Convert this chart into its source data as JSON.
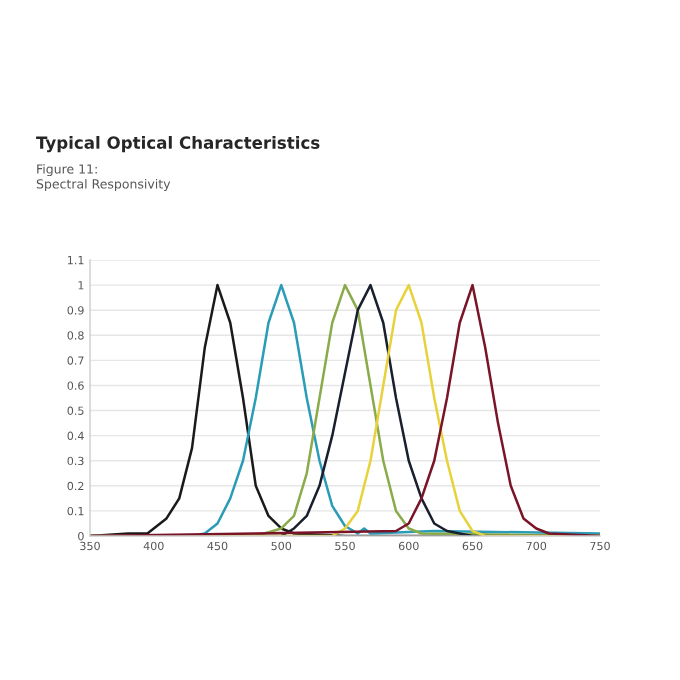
{
  "chart_data": {
    "type": "line",
    "title": "Typical Optical Characteristics",
    "subtitle": "Figure 11:\nSpectral Responsivity",
    "xlim": [
      350,
      750
    ],
    "xticks": [
      350,
      400,
      450,
      500,
      550,
      600,
      650,
      700,
      750
    ],
    "ylim": [
      0,
      1.1
    ],
    "yticks": [
      0,
      0.1,
      0.2,
      0.3,
      0.4,
      0.5,
      0.6,
      0.7,
      0.8,
      0.9,
      1,
      1.1
    ],
    "grid": "y",
    "marker": "none",
    "line_style": "solid",
    "series": [
      {
        "color": "#1a1a1a",
        "x": [
          350,
          380,
          395,
          400,
          410,
          420,
          430,
          440,
          450,
          460,
          470,
          480,
          490,
          500,
          510,
          550,
          750
        ],
        "values": [
          0,
          0.01,
          0.01,
          0.03,
          0.07,
          0.15,
          0.35,
          0.75,
          1.0,
          0.85,
          0.55,
          0.2,
          0.08,
          0.03,
          0.01,
          0,
          0
        ]
      },
      {
        "color": "#2a9cb8",
        "x": [
          350,
          430,
          440,
          450,
          460,
          470,
          480,
          490,
          500,
          510,
          520,
          530,
          540,
          550,
          560,
          565,
          570,
          620,
          750
        ],
        "values": [
          0,
          0,
          0.01,
          0.05,
          0.15,
          0.3,
          0.55,
          0.85,
          1.0,
          0.85,
          0.55,
          0.3,
          0.12,
          0.04,
          0.01,
          0.03,
          0.01,
          0.02,
          0.01
        ]
      },
      {
        "color": "#8aab4a",
        "x": [
          350,
          480,
          500,
          510,
          520,
          530,
          540,
          550,
          560,
          570,
          580,
          590,
          600,
          610,
          750
        ],
        "values": [
          0,
          0,
          0.03,
          0.08,
          0.25,
          0.55,
          0.85,
          1.0,
          0.9,
          0.6,
          0.3,
          0.1,
          0.03,
          0.01,
          0
        ]
      },
      {
        "color": "#1a1f2e",
        "x": [
          350,
          500,
          510,
          520,
          530,
          540,
          550,
          560,
          570,
          580,
          590,
          600,
          610,
          620,
          630,
          650,
          750
        ],
        "values": [
          0,
          0,
          0.03,
          0.08,
          0.2,
          0.4,
          0.65,
          0.9,
          1.0,
          0.85,
          0.55,
          0.3,
          0.15,
          0.05,
          0.02,
          0,
          0
        ]
      },
      {
        "color": "#e8d23c",
        "x": [
          350,
          540,
          550,
          560,
          570,
          580,
          590,
          600,
          610,
          620,
          630,
          640,
          650,
          660,
          750
        ],
        "values": [
          0,
          0,
          0.03,
          0.1,
          0.3,
          0.6,
          0.9,
          1.0,
          0.85,
          0.55,
          0.3,
          0.1,
          0.02,
          0,
          0
        ]
      },
      {
        "color": "#7a1428",
        "x": [
          350,
          480,
          590,
          600,
          610,
          620,
          630,
          640,
          650,
          660,
          670,
          680,
          690,
          700,
          710,
          750
        ],
        "values": [
          0,
          0.01,
          0.02,
          0.05,
          0.15,
          0.3,
          0.55,
          0.85,
          1.0,
          0.75,
          0.45,
          0.2,
          0.07,
          0.03,
          0.01,
          0
        ]
      }
    ]
  }
}
